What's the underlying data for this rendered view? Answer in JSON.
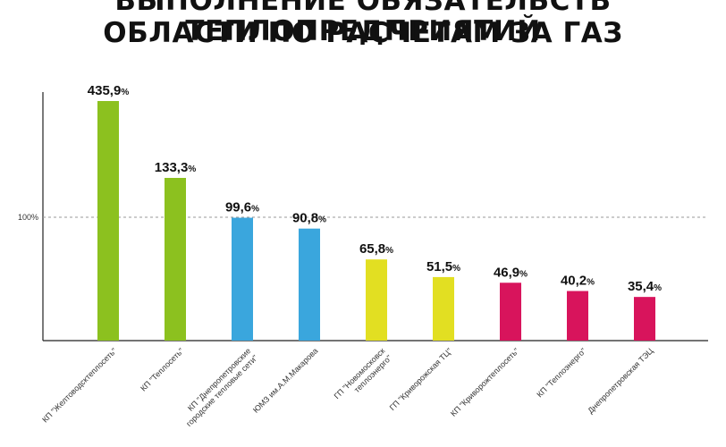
{
  "title": {
    "line1": "ВЫПОЛНЕНИЕ ОБЯЗАТЕЛЬСТВ ТЕПЛОПРЕДПРИЯТИЙ",
    "line2": "ОБЛАСТИ ПО РАСЧЕТАМ ЗА ГАЗ"
  },
  "chart_data": {
    "type": "bar",
    "reference_line": {
      "value": 100,
      "label": "100%",
      "style": "dashed"
    },
    "value_suffix": "%",
    "categories": [
      [
        "КП \"Желтоводсктеплосеть\""
      ],
      [
        "КП \"Теплосеть\""
      ],
      [
        "КП \"Днепропетровские",
        "городские тепловые сети\""
      ],
      [
        "ЮМЗ им.А.М.Макарова"
      ],
      [
        "ГП \"Новомосковск",
        "теплоэнерго\""
      ],
      [
        "ГП \"Криворожская ТЦ\""
      ],
      [
        "КП \"Криворожтеплосеть\""
      ],
      [
        "КП \"Теплоэнерго\""
      ],
      [
        "Днепропетровская ТЭЦ"
      ]
    ],
    "values": [
      435.9,
      133.3,
      99.6,
      90.8,
      65.8,
      51.5,
      46.9,
      40.2,
      35.4
    ],
    "value_labels": [
      "435,9",
      "133,3",
      "99,6",
      "90,8",
      "65,8",
      "51,5",
      "46,9",
      "40,2",
      "35,4"
    ],
    "colors": [
      "#8cc11f",
      "#8cc11f",
      "#3aa6dd",
      "#3aa6dd",
      "#e2df22",
      "#e2df22",
      "#d8145c",
      "#d8145c",
      "#d8145c"
    ],
    "axis_break": true,
    "grid": false
  }
}
